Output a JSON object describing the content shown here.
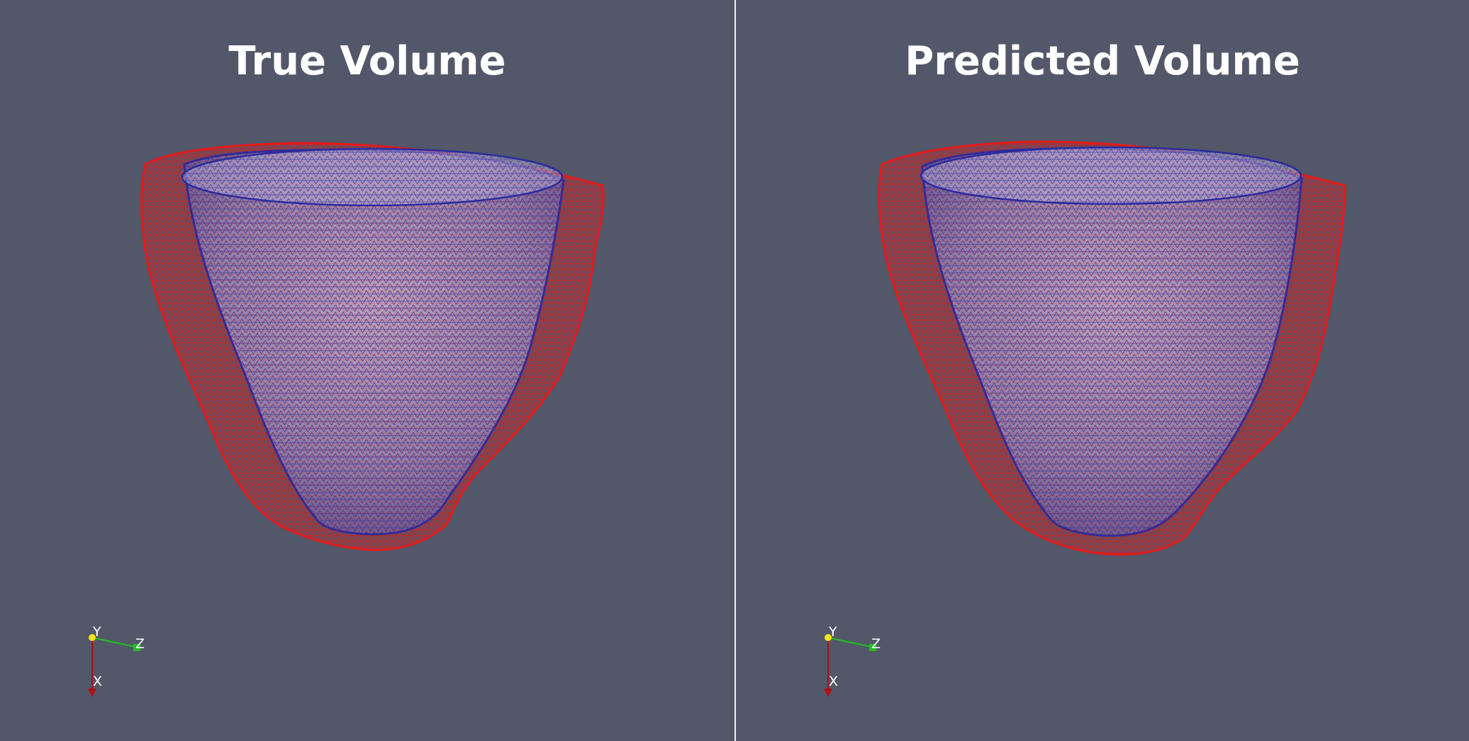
{
  "views": [
    {
      "title": "True Volume",
      "axes": {
        "x": "X",
        "y": "Y",
        "z": "Z"
      }
    },
    {
      "title": "Predicted Volume",
      "axes": {
        "x": "X",
        "y": "Y",
        "z": "Z"
      }
    }
  ],
  "colors": {
    "background": "#525769",
    "outer_mesh": "#e41a1a",
    "inner_mesh": "#2b2b9e",
    "inner_fill": "#9b8fb4",
    "axis_x": "#b01010",
    "axis_y": "#f2e31e",
    "axis_z": "#22c020"
  }
}
